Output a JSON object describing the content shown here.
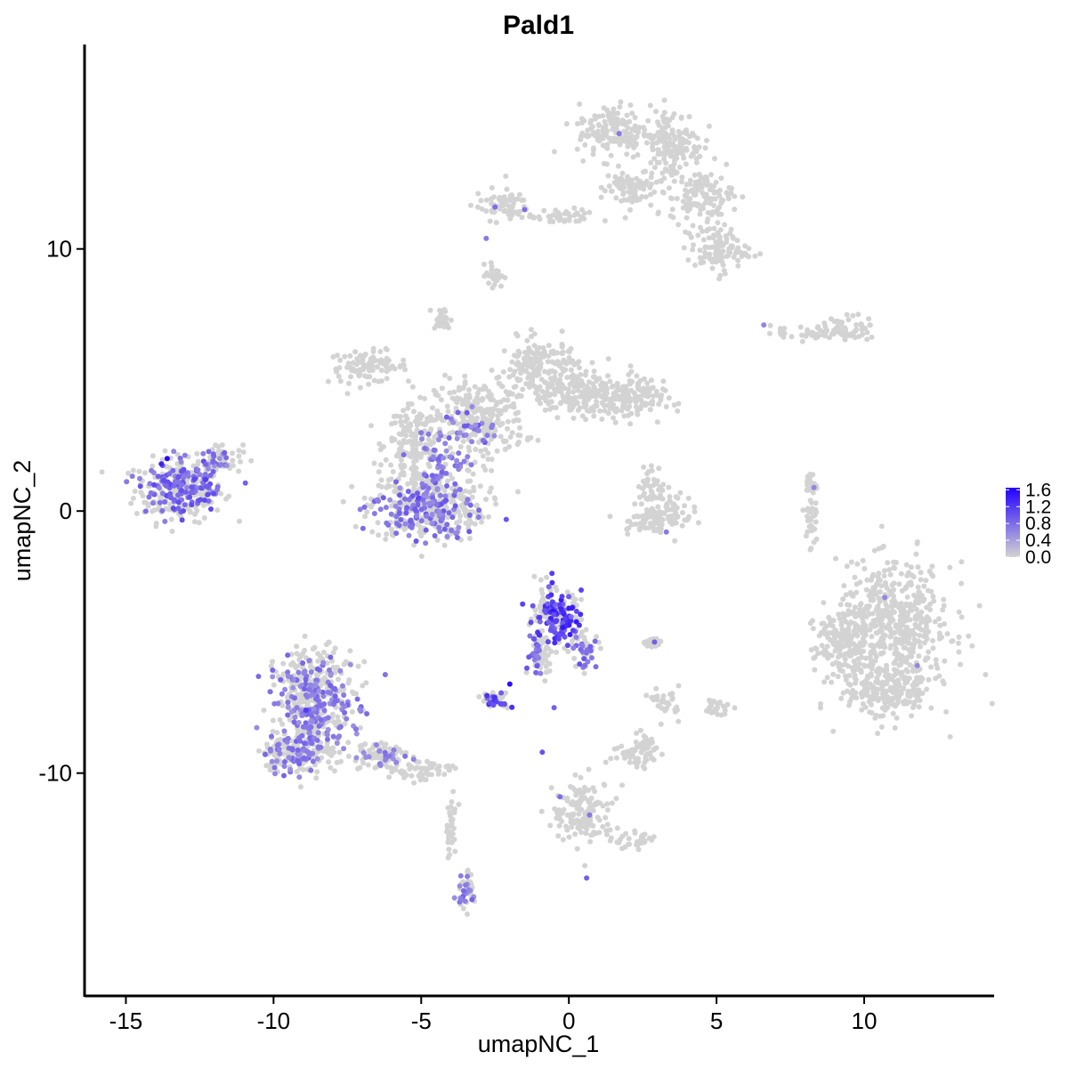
{
  "chart_data": {
    "type": "scatter",
    "title": "Pald1",
    "xlabel": "umapNC_1",
    "ylabel": "umapNC_2",
    "xlim": [
      -16.4,
      14.4
    ],
    "ylim": [
      -18.5,
      17.8
    ],
    "x_ticks": [
      -15,
      -10,
      -5,
      0,
      5,
      10
    ],
    "x_tick_labels": [
      "-15",
      "-10",
      "-5",
      "0",
      "5",
      "10"
    ],
    "y_ticks": [
      -10,
      0,
      10
    ],
    "y_tick_labels": [
      "-10",
      "0",
      "10"
    ],
    "grid": false,
    "legend_position": "right",
    "colorbar": {
      "min": 0.0,
      "max": 1.65,
      "low_color": "#d3d3d3",
      "high_color": "#2200ff",
      "ticks": [
        0.0,
        0.4,
        0.8,
        1.2,
        1.6
      ],
      "tick_labels": [
        "0.0",
        "0.4",
        "0.8",
        "1.2",
        "1.6"
      ]
    },
    "background_color": "#d3d3d3",
    "background_clusters": [
      {
        "x": -13.2,
        "y": 0.8,
        "sx": 1.0,
        "sy": 0.8
      },
      {
        "x": -11.8,
        "y": 2.0,
        "sx": 0.5,
        "sy": 0.4
      },
      {
        "x": -6.8,
        "y": 5.5,
        "sx": 0.9,
        "sy": 0.4
      },
      {
        "x": -5.2,
        "y": 2.5,
        "sx": 0.7,
        "sy": 1.0
      },
      {
        "x": -4.8,
        "y": 0.2,
        "sx": 1.3,
        "sy": 0.9
      },
      {
        "x": -3.0,
        "y": 3.5,
        "sx": 1.0,
        "sy": 1.0
      },
      {
        "x": -1.0,
        "y": 5.5,
        "sx": 0.9,
        "sy": 0.7
      },
      {
        "x": 0.5,
        "y": 4.5,
        "sx": 1.3,
        "sy": 0.6
      },
      {
        "x": 2.0,
        "y": 4.2,
        "sx": 0.8,
        "sy": 0.5
      },
      {
        "x": -4.3,
        "y": 7.3,
        "sx": 0.2,
        "sy": 0.3
      },
      {
        "x": -2.5,
        "y": 9.0,
        "sx": 0.2,
        "sy": 0.3
      },
      {
        "x": 1.5,
        "y": 14.5,
        "sx": 0.8,
        "sy": 0.7
      },
      {
        "x": 3.5,
        "y": 14.0,
        "sx": 0.7,
        "sy": 0.9
      },
      {
        "x": 4.5,
        "y": 12.0,
        "sx": 0.7,
        "sy": 0.6
      },
      {
        "x": 5.0,
        "y": 10.0,
        "sx": 0.7,
        "sy": 0.6
      },
      {
        "x": 2.0,
        "y": 12.3,
        "sx": 0.6,
        "sy": 0.5
      },
      {
        "x": -2.3,
        "y": 11.7,
        "sx": 0.6,
        "sy": 0.4
      },
      {
        "x": -0.2,
        "y": 11.2,
        "sx": 0.8,
        "sy": 0.2
      },
      {
        "x": 8.3,
        "y": 6.8,
        "sx": 1.0,
        "sy": 0.2
      },
      {
        "x": 9.5,
        "y": 7.0,
        "sx": 0.6,
        "sy": 0.3
      },
      {
        "x": 2.8,
        "y": 1.0,
        "sx": 0.3,
        "sy": 0.5
      },
      {
        "x": 3.3,
        "y": 0.0,
        "sx": 0.6,
        "sy": 0.5
      },
      {
        "x": 2.5,
        "y": -0.4,
        "sx": 0.5,
        "sy": 0.3
      },
      {
        "x": 8.2,
        "y": -0.3,
        "sx": 0.15,
        "sy": 0.8
      },
      {
        "x": 8.2,
        "y": 1.0,
        "sx": 0.1,
        "sy": 0.3
      },
      {
        "x": 11.0,
        "y": -4.3,
        "sx": 1.3,
        "sy": 1.5
      },
      {
        "x": 10.8,
        "y": -6.8,
        "sx": 1.1,
        "sy": 0.8
      },
      {
        "x": 9.2,
        "y": -5.0,
        "sx": 0.6,
        "sy": 0.8
      },
      {
        "x": -8.6,
        "y": -7.0,
        "sx": 0.9,
        "sy": 1.2
      },
      {
        "x": -9.2,
        "y": -9.2,
        "sx": 0.8,
        "sy": 0.6
      },
      {
        "x": -6.5,
        "y": -9.3,
        "sx": 0.7,
        "sy": 0.4
      },
      {
        "x": -5.0,
        "y": -9.9,
        "sx": 0.7,
        "sy": 0.3
      },
      {
        "x": -4.0,
        "y": -12.0,
        "sx": 0.15,
        "sy": 0.8
      },
      {
        "x": -3.5,
        "y": -14.5,
        "sx": 0.2,
        "sy": 0.5
      },
      {
        "x": -0.5,
        "y": -4.0,
        "sx": 0.6,
        "sy": 0.7
      },
      {
        "x": 0.6,
        "y": -5.2,
        "sx": 0.3,
        "sy": 0.4
      },
      {
        "x": -2.5,
        "y": -7.2,
        "sx": 0.3,
        "sy": 0.2
      },
      {
        "x": -0.9,
        "y": -5.5,
        "sx": 0.3,
        "sy": 0.5
      },
      {
        "x": 2.4,
        "y": -9.3,
        "sx": 0.6,
        "sy": 0.35
      },
      {
        "x": 2.6,
        "y": -8.8,
        "sx": 0.2,
        "sy": 0.2
      },
      {
        "x": 0.5,
        "y": -11.5,
        "sx": 0.7,
        "sy": 0.8
      },
      {
        "x": 2.3,
        "y": -12.6,
        "sx": 0.5,
        "sy": 0.2
      },
      {
        "x": 3.3,
        "y": -7.3,
        "sx": 0.3,
        "sy": 0.4
      },
      {
        "x": 5.0,
        "y": -7.5,
        "sx": 0.3,
        "sy": 0.2
      },
      {
        "x": 2.8,
        "y": -5.0,
        "sx": 0.2,
        "sy": 0.1
      }
    ],
    "expression_clusters": [
      {
        "x": -13.2,
        "y": 0.9,
        "sx": 0.9,
        "sy": 0.7,
        "level_low": 0.6,
        "level_high": 1.1,
        "share": 0.85
      },
      {
        "x": -11.9,
        "y": 1.9,
        "sx": 0.4,
        "sy": 0.3,
        "level_low": 0.5,
        "level_high": 0.9,
        "share": 0.6
      },
      {
        "x": -4.9,
        "y": 0.0,
        "sx": 1.2,
        "sy": 0.8,
        "level_low": 0.5,
        "level_high": 1.0,
        "share": 0.55
      },
      {
        "x": -4.3,
        "y": 2.0,
        "sx": 0.6,
        "sy": 0.8,
        "level_low": 0.5,
        "level_high": 0.9,
        "share": 0.4
      },
      {
        "x": -3.3,
        "y": 3.0,
        "sx": 0.6,
        "sy": 0.6,
        "level_low": 0.5,
        "level_high": 1.0,
        "share": 0.3
      },
      {
        "x": -8.6,
        "y": -7.4,
        "sx": 0.9,
        "sy": 1.3,
        "level_low": 0.5,
        "level_high": 0.9,
        "share": 0.6
      },
      {
        "x": -9.3,
        "y": -9.2,
        "sx": 0.7,
        "sy": 0.5,
        "level_low": 0.5,
        "level_high": 0.9,
        "share": 0.55
      },
      {
        "x": -6.3,
        "y": -9.4,
        "sx": 0.6,
        "sy": 0.4,
        "level_low": 0.5,
        "level_high": 0.8,
        "share": 0.3
      },
      {
        "x": -0.4,
        "y": -4.0,
        "sx": 0.6,
        "sy": 0.7,
        "level_low": 0.8,
        "level_high": 1.5,
        "share": 0.85
      },
      {
        "x": 0.5,
        "y": -5.3,
        "sx": 0.3,
        "sy": 0.4,
        "level_low": 0.6,
        "level_high": 1.1,
        "share": 0.6
      },
      {
        "x": -2.5,
        "y": -7.2,
        "sx": 0.3,
        "sy": 0.2,
        "level_low": 0.8,
        "level_high": 1.3,
        "share": 0.85
      },
      {
        "x": -1.1,
        "y": -5.6,
        "sx": 0.2,
        "sy": 0.4,
        "level_low": 0.6,
        "level_high": 1.0,
        "share": 0.5
      },
      {
        "x": -3.5,
        "y": -14.5,
        "sx": 0.2,
        "sy": 0.4,
        "level_low": 0.5,
        "level_high": 0.9,
        "share": 0.35
      }
    ],
    "highlight_points": [
      {
        "x": -13.6,
        "y": 2.0,
        "value": 1.6
      },
      {
        "x": -13.8,
        "y": 1.8,
        "value": 1.4
      },
      {
        "x": -2.0,
        "y": -6.6,
        "value": 1.55
      },
      {
        "x": 0.1,
        "y": -3.7,
        "value": 1.45
      },
      {
        "x": -0.6,
        "y": -3.2,
        "value": 1.3
      },
      {
        "x": -8.9,
        "y": -7.6,
        "value": 1.2
      },
      {
        "x": -12.3,
        "y": 1.2,
        "value": 1.2
      },
      {
        "x": -0.9,
        "y": -9.2,
        "value": 1.0
      },
      {
        "x": -5.1,
        "y": 0.5,
        "value": 1.1
      },
      {
        "x": 1.7,
        "y": 14.4,
        "value": 0.7
      },
      {
        "x": 10.7,
        "y": -3.3,
        "value": 0.6
      },
      {
        "x": 11.8,
        "y": -5.9,
        "value": 0.6
      },
      {
        "x": 6.6,
        "y": 7.1,
        "value": 0.6
      },
      {
        "x": 8.3,
        "y": 0.9,
        "value": 0.6
      },
      {
        "x": 3.3,
        "y": -0.8,
        "value": 0.7
      },
      {
        "x": -2.5,
        "y": 11.6,
        "value": 0.8
      },
      {
        "x": -1.5,
        "y": 11.5,
        "value": 0.8
      },
      {
        "x": -2.8,
        "y": 10.4,
        "value": 0.7
      },
      {
        "x": 0.6,
        "y": -14.0,
        "value": 0.9
      },
      {
        "x": 2.9,
        "y": -5.0,
        "value": 0.9
      },
      {
        "x": 0.7,
        "y": -11.6,
        "value": 0.7
      },
      {
        "x": -0.3,
        "y": -10.9,
        "value": 0.8
      },
      {
        "x": -0.5,
        "y": -7.5,
        "value": 0.9
      }
    ]
  }
}
